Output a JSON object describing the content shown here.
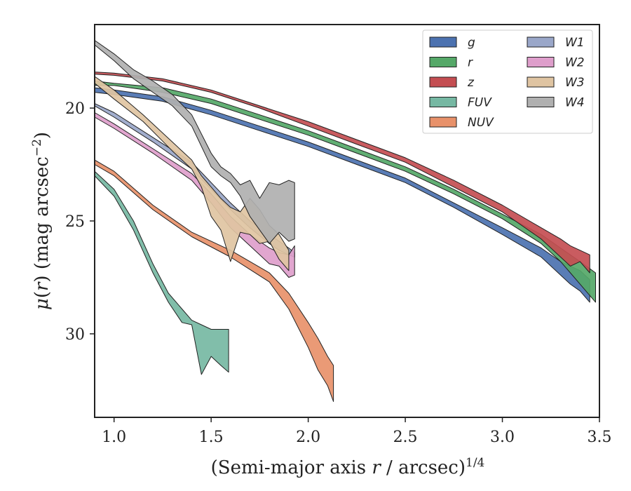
{
  "chart_data": {
    "type": "area",
    "title": "",
    "xlabel": {
      "pre": "(Semi-major axis ",
      "var": "r",
      "post": " / arcsec)",
      "sup": "1/4"
    },
    "ylabel": {
      "mu": "μ",
      "open": "(",
      "var": "r",
      "close": ")",
      "unit": " (mag arcsec",
      "sup": "−2",
      "end": ")"
    },
    "xlim": [
      0.9,
      3.5
    ],
    "ylim": [
      33.7,
      16.3
    ],
    "y_inverted": true,
    "x_ticks": [
      1.0,
      1.5,
      2.0,
      2.5,
      3.0,
      3.5
    ],
    "x_tick_labels": [
      "1.0",
      "1.5",
      "2.0",
      "2.5",
      "3.0",
      "3.5"
    ],
    "y_ticks": [
      20,
      25,
      30
    ],
    "y_tick_labels": [
      "20",
      "25",
      "30"
    ],
    "legend_position": "top-right",
    "legend_columns": 2,
    "series": [
      {
        "name": "g",
        "color": "#4c72b0",
        "x": [
          0.9,
          1.0,
          1.25,
          1.5,
          1.75,
          2.0,
          2.25,
          2.5,
          2.75,
          3.0,
          3.2,
          3.3,
          3.35,
          3.4,
          3.45
        ],
        "lo": [
          19.1,
          19.2,
          19.5,
          20.1,
          20.8,
          21.5,
          22.3,
          23.1,
          24.2,
          25.3,
          26.2,
          26.8,
          27.0,
          27.2,
          27.6
        ],
        "hi": [
          19.3,
          19.4,
          19.7,
          20.3,
          21.0,
          21.7,
          22.5,
          23.3,
          24.4,
          25.6,
          26.6,
          27.4,
          27.8,
          28.1,
          28.6
        ]
      },
      {
        "name": "r",
        "color": "#55a868",
        "x": [
          0.9,
          1.0,
          1.25,
          1.5,
          1.75,
          2.0,
          2.25,
          2.5,
          2.75,
          3.0,
          3.2,
          3.3,
          3.35,
          3.4,
          3.48
        ],
        "lo": [
          18.8,
          18.9,
          19.1,
          19.6,
          20.3,
          21.0,
          21.8,
          22.6,
          23.6,
          24.7,
          25.6,
          26.2,
          26.5,
          26.8,
          27.3
        ],
        "hi": [
          19.0,
          19.0,
          19.3,
          19.8,
          20.5,
          21.2,
          22.0,
          22.8,
          23.8,
          24.9,
          26.0,
          26.8,
          27.3,
          27.8,
          28.6
        ]
      },
      {
        "name": "z",
        "color": "#c44e52",
        "x": [
          0.9,
          1.0,
          1.25,
          1.5,
          1.75,
          2.0,
          2.25,
          2.5,
          2.75,
          3.0,
          3.2,
          3.3,
          3.35,
          3.4,
          3.45
        ],
        "lo": [
          18.4,
          18.45,
          18.7,
          19.2,
          19.9,
          20.6,
          21.4,
          22.2,
          23.2,
          24.3,
          25.3,
          25.8,
          26.1,
          26.3,
          26.5
        ],
        "hi": [
          18.5,
          18.55,
          18.8,
          19.3,
          20.0,
          20.8,
          21.6,
          22.4,
          23.5,
          24.6,
          25.8,
          26.6,
          27.0,
          26.8,
          27.3
        ]
      },
      {
        "name": "FUV",
        "color": "#76b8a3",
        "x": [
          0.9,
          1.0,
          1.1,
          1.2,
          1.28,
          1.35,
          1.4,
          1.45,
          1.5,
          1.55,
          1.59
        ],
        "lo": [
          22.8,
          23.6,
          25.0,
          26.9,
          28.2,
          28.9,
          29.4,
          29.6,
          29.8,
          29.8,
          29.8
        ],
        "hi": [
          23.0,
          23.9,
          25.4,
          27.3,
          28.6,
          29.5,
          29.6,
          31.8,
          31.0,
          31.4,
          31.7
        ]
      },
      {
        "name": "NUV",
        "color": "#e8916a",
        "x": [
          0.9,
          1.0,
          1.2,
          1.4,
          1.6,
          1.8,
          1.9,
          2.0,
          2.05,
          2.1,
          2.13
        ],
        "lo": [
          22.3,
          22.8,
          24.3,
          25.5,
          26.3,
          27.3,
          28.2,
          29.5,
          30.2,
          31.0,
          31.4
        ],
        "hi": [
          22.5,
          23.0,
          24.5,
          25.7,
          26.6,
          27.7,
          28.9,
          30.6,
          31.6,
          32.3,
          33.0
        ]
      },
      {
        "name": "W1",
        "color": "#9aa7c9",
        "x": [
          0.9,
          1.0,
          1.2,
          1.4,
          1.5,
          1.6,
          1.7,
          1.8,
          1.85,
          1.9,
          1.93
        ],
        "lo": [
          19.8,
          20.2,
          21.3,
          22.4,
          23.3,
          24.2,
          25.0,
          25.6,
          25.9,
          26.2,
          26.4
        ],
        "hi": [
          19.9,
          20.4,
          21.5,
          22.7,
          23.6,
          24.5,
          25.3,
          26.0,
          26.3,
          26.5,
          26.6
        ]
      },
      {
        "name": "W2",
        "color": "#de9ecb",
        "x": [
          0.9,
          1.0,
          1.2,
          1.4,
          1.5,
          1.6,
          1.7,
          1.8,
          1.85,
          1.9,
          1.93
        ],
        "lo": [
          20.2,
          20.7,
          21.8,
          22.9,
          23.8,
          24.8,
          25.6,
          26.2,
          26.4,
          26.5,
          26.1
        ],
        "hi": [
          20.4,
          20.9,
          22.0,
          23.2,
          24.2,
          25.3,
          26.1,
          26.9,
          27.0,
          27.5,
          27.4
        ]
      },
      {
        "name": "W3",
        "color": "#dfc4a2",
        "x": [
          0.9,
          1.0,
          1.15,
          1.3,
          1.4,
          1.45,
          1.5,
          1.55,
          1.6,
          1.65,
          1.7,
          1.75,
          1.8,
          1.85,
          1.9
        ],
        "lo": [
          18.6,
          19.2,
          20.3,
          21.5,
          22.3,
          23.0,
          23.5,
          24.0,
          24.4,
          24.6,
          24.0,
          24.5,
          25.2,
          25.6,
          26.3
        ],
        "hi": [
          18.9,
          19.6,
          20.6,
          21.9,
          22.7,
          23.5,
          24.8,
          25.4,
          26.8,
          25.5,
          25.6,
          26.0,
          25.9,
          26.7,
          27.2
        ]
      },
      {
        "name": "W4",
        "color": "#b0b0b0",
        "x": [
          0.9,
          1.0,
          1.1,
          1.2,
          1.3,
          1.4,
          1.5,
          1.55,
          1.6,
          1.65,
          1.7,
          1.75,
          1.8,
          1.85,
          1.9,
          1.93
        ],
        "lo": [
          17.0,
          17.6,
          18.3,
          18.8,
          19.4,
          20.3,
          22.0,
          22.6,
          22.9,
          23.4,
          23.2,
          24.0,
          23.3,
          23.4,
          23.2,
          23.3
        ],
        "hi": [
          17.2,
          17.9,
          18.7,
          19.3,
          19.9,
          20.8,
          22.6,
          23.0,
          23.3,
          23.9,
          24.8,
          25.4,
          26.0,
          25.5,
          25.9,
          25.8
        ]
      }
    ]
  }
}
